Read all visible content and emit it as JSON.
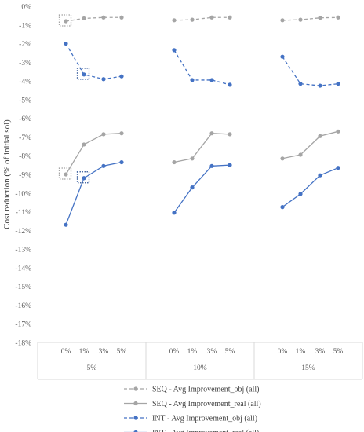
{
  "chart_data": {
    "type": "line",
    "title": "",
    "ylabel": "Cost reduction (% of initial sol)",
    "xlabel": "",
    "ylim": [
      -18,
      0
    ],
    "yticks": [
      0,
      -1,
      -2,
      -3,
      -4,
      -5,
      -6,
      -7,
      -8,
      -9,
      -10,
      -11,
      -12,
      -13,
      -14,
      -15,
      -16,
      -17,
      -18
    ],
    "ytick_labels": [
      "0%",
      "-1%",
      "-2%",
      "-3%",
      "-4%",
      "-5%",
      "-6%",
      "-7%",
      "-8%",
      "-9%",
      "-10%",
      "-11%",
      "-12%",
      "-13%",
      "-14%",
      "-15%",
      "-16%",
      "-17%",
      "-18%"
    ],
    "groups": [
      "5%",
      "10%",
      "15%"
    ],
    "sub_categories": [
      "0%",
      "1%",
      "3%",
      "5%"
    ],
    "grid": false,
    "legend_position": "bottom",
    "series": [
      {
        "name": "SEQ - Avg Improvement_obj (all)",
        "color": "#a5a5a5",
        "dashed": true,
        "values": [
          [
            -0.8,
            -0.65,
            -0.6,
            -0.6
          ],
          [
            -0.75,
            -0.72,
            -0.6,
            -0.6
          ],
          [
            -0.75,
            -0.72,
            -0.62,
            -0.6
          ]
        ]
      },
      {
        "name": "SEQ - Avg Improvement_real (all)",
        "color": "#a5a5a5",
        "dashed": false,
        "values": [
          [
            -9.0,
            -7.4,
            -6.85,
            -6.8
          ],
          [
            -8.35,
            -8.15,
            -6.8,
            -6.85
          ],
          [
            -8.15,
            -7.95,
            -6.95,
            -6.7
          ]
        ]
      },
      {
        "name": "INT - Avg Improvement_obj (all)",
        "color": "#4472c4",
        "dashed": true,
        "values": [
          [
            -2.0,
            -3.65,
            -3.9,
            -3.75
          ],
          [
            -2.35,
            -3.95,
            -3.95,
            -4.2
          ],
          [
            -2.7,
            -4.15,
            -4.25,
            -4.15
          ]
        ]
      },
      {
        "name": "INT - Avg Improvement_real (all)",
        "color": "#4472c4",
        "dashed": false,
        "values": [
          [
            -11.7,
            -9.2,
            -8.55,
            -8.35
          ],
          [
            -11.05,
            -9.7,
            -8.55,
            -8.5
          ],
          [
            -10.75,
            -10.05,
            -9.05,
            -8.65
          ]
        ]
      }
    ],
    "annotations": [
      {
        "type": "dotted-box",
        "series": 0,
        "group": 0,
        "index": 0,
        "color": "#a5a5a5"
      },
      {
        "type": "dotted-box",
        "series": 1,
        "group": 0,
        "index": 0,
        "color": "#a5a5a5"
      },
      {
        "type": "dotted-box",
        "series": 2,
        "group": 0,
        "index": 1,
        "color": "#2f5597"
      },
      {
        "type": "dotted-box",
        "series": 3,
        "group": 0,
        "index": 1,
        "color": "#2f5597"
      }
    ]
  }
}
